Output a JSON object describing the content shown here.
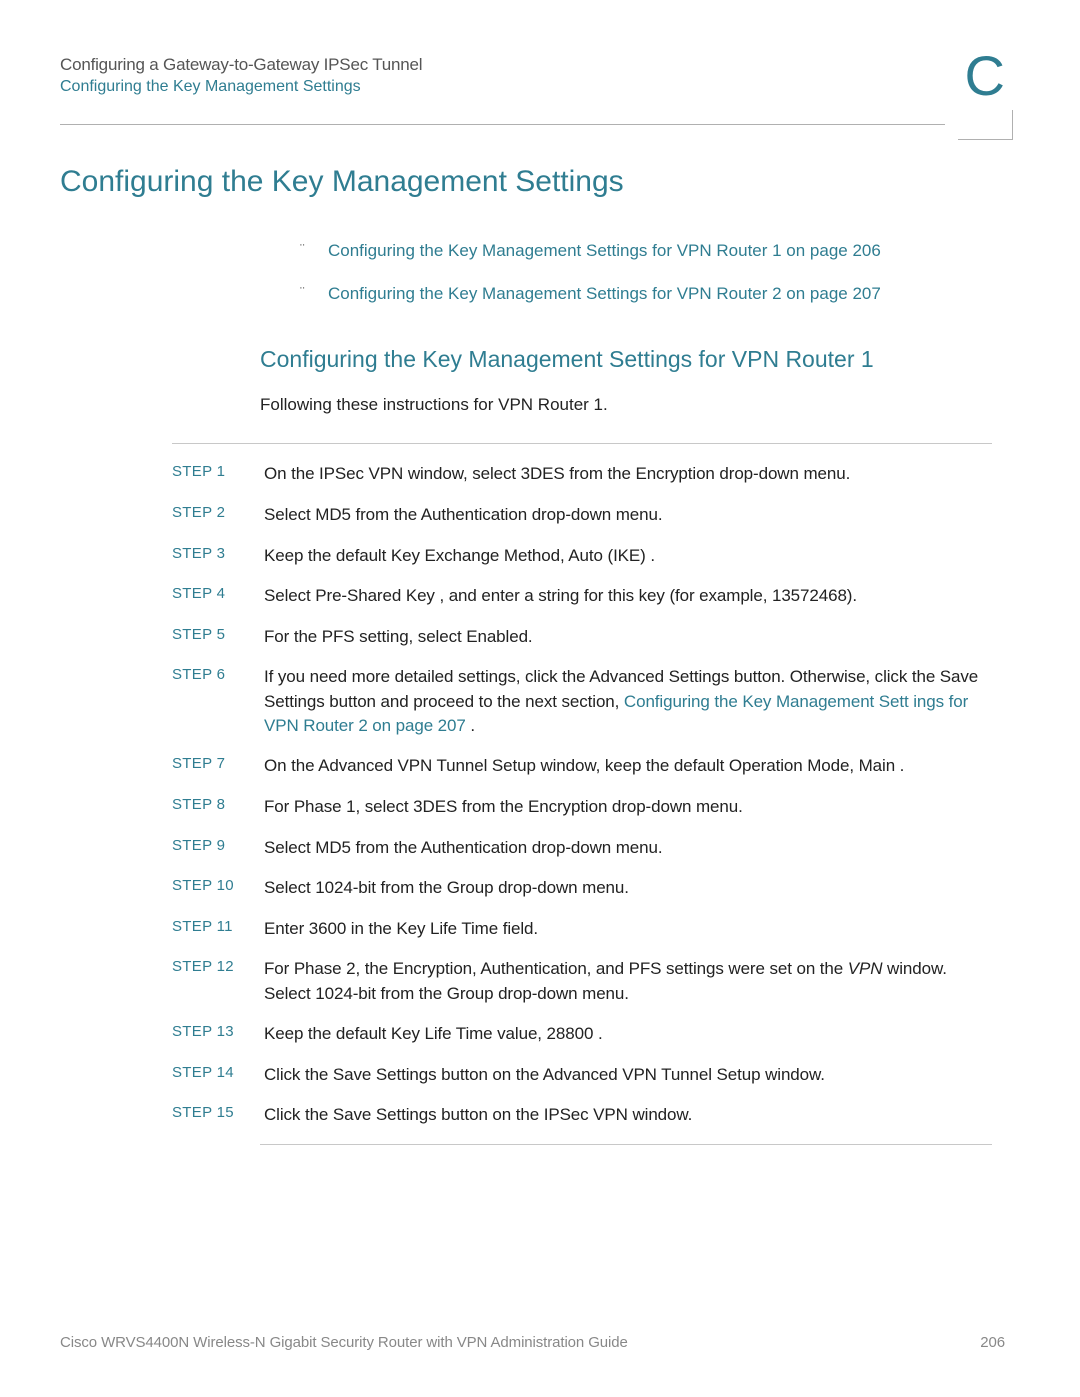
{
  "header": {
    "line1": "Configuring a Gateway-to-Gateway IPSec Tunnel",
    "line2": "Configuring the Key Management Settings",
    "appendix": "C"
  },
  "title": "Configuring the Key Management Settings",
  "bullets": [
    "Configuring the Key Management Settings for VPN Router 1  on page 206",
    "Configuring the Key Management Settings for VPN Router 2  on page 207"
  ],
  "subtitle": "Configuring the Key Management Settings for VPN Router 1",
  "intro": "Following these instructions for VPN Router 1.",
  "steps": [
    {
      "n": "STEP 1",
      "text": "On the IPSec VPN window, select 3DES from the Encryption drop-down menu."
    },
    {
      "n": "STEP 2",
      "text": "Select MD5 from the Authentication drop-down menu."
    },
    {
      "n": "STEP 3",
      "text": "Keep the default Key Exchange Method, Auto (IKE) ."
    },
    {
      "n": "STEP 4",
      "text": "Select Pre-Shared Key , and enter a string for this key (for example, 13572468)."
    },
    {
      "n": "STEP 5",
      "text": "For the PFS setting, select Enabled."
    },
    {
      "n": "STEP 6",
      "pre": "If you need more detailed settings, click the Advanced Settings   button. Otherwise, click the Save Settings  button and proceed to the next section, ",
      "link": "Configuring the Key Management Sett      ings for VPN Router 2  on page 207",
      "post": "     ."
    },
    {
      "n": "STEP 7",
      "text": "On the Advanced VPN Tunnel Setup window, keep the default Operation Mode, Main ."
    },
    {
      "n": "STEP 8",
      "text": "For Phase 1, select 3DES from the Encryption drop-down menu."
    },
    {
      "n": "STEP 9",
      "text": "Select MD5 from the Authentication drop-down menu."
    },
    {
      "n": "STEP 10",
      "text": "Select 1024-bit from the Group drop-down menu."
    },
    {
      "n": "STEP 11",
      "text": "Enter 3600 in the Key Life Time field."
    },
    {
      "n": "STEP 12",
      "pre": "For Phase 2, the Encryption, Authentication, and PFS settings were set on the ",
      "ital": "VPN",
      "post2": " window. Select 1024-bit  from the Group drop-down menu."
    },
    {
      "n": "STEP 13",
      "text": "Keep the default Key Life Time value, 28800 ."
    },
    {
      "n": "STEP 14",
      "text": "Click the Save Settings  button on the Advanced VPN Tunnel Setup window."
    },
    {
      "n": "STEP 15",
      "text": "Click the Save Settings  button on the IPSec VPN window."
    }
  ],
  "footer": {
    "left": "Cisco WRVS4400N Wireless-N Gigabit Security Router with VPN Administration Guide",
    "page": "206"
  },
  "colors": {
    "accent": "#2f7d91",
    "text": "#222222",
    "muted": "#888888",
    "rule": "#b0b0b0"
  }
}
